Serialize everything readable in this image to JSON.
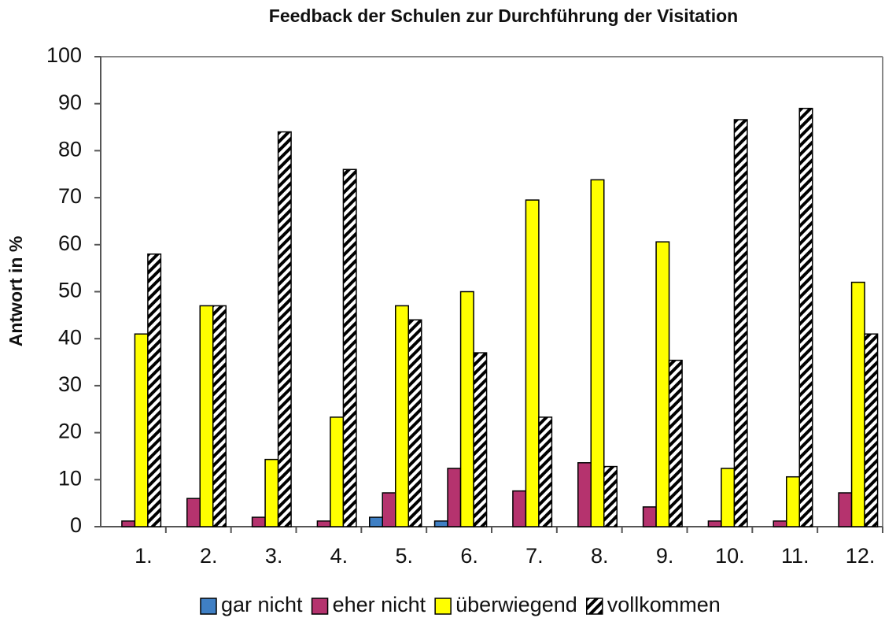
{
  "chart_data": {
    "type": "bar",
    "title": "Feedback der Schulen zur Durchführung der Visitation",
    "y_label": "Antwort in %",
    "categories": [
      "1.",
      "2.",
      "3.",
      "4.",
      "5.",
      "6.",
      "7.",
      "8.",
      "9.",
      "10.",
      "11.",
      "12."
    ],
    "series": [
      {
        "name": "gar nicht",
        "color": "#3f7fc4",
        "values": [
          0,
          0,
          0,
          0,
          2,
          1.2,
          0,
          0,
          0,
          0,
          0,
          0
        ]
      },
      {
        "name": "eher nicht",
        "color": "#b5336e",
        "values": [
          1.2,
          6,
          2,
          1.2,
          7.2,
          12.4,
          7.6,
          13.6,
          4.2,
          1.2,
          1.2,
          7.2
        ]
      },
      {
        "name": "überwiegend",
        "color": "#ffff00",
        "values": [
          41,
          47,
          14.3,
          23.3,
          47,
          50,
          69.5,
          73.8,
          60.6,
          12.4,
          10.6,
          52
        ]
      },
      {
        "name": "vollkommen",
        "color": "#000000",
        "hatch": true,
        "values": [
          58,
          47,
          84,
          76,
          44,
          37,
          23.3,
          12.8,
          35.4,
          86.6,
          89,
          41
        ]
      }
    ],
    "ylim": [
      0,
      100
    ],
    "yticks": [
      0,
      10,
      20,
      30,
      40,
      50,
      60,
      70,
      80,
      90,
      100
    ],
    "grid": false,
    "legend": "bottom"
  }
}
